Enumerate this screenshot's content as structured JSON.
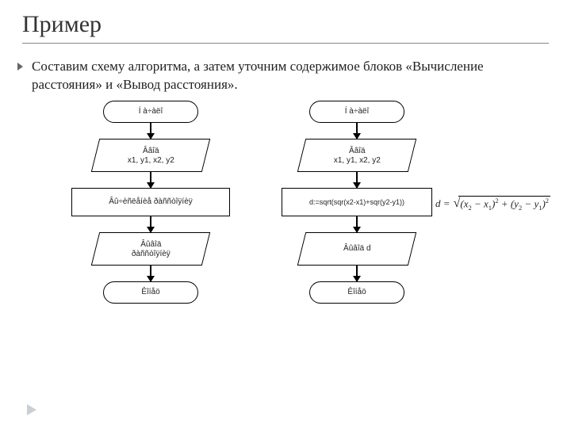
{
  "title": "Пример",
  "paragraph": "Составим схему алгоритма, а затем уточним содержимое блоков «Вычисление расстояния» и «Вывод расстояния».",
  "formula_lhs": "d =",
  "formula_body_html": "(<i>x</i><sub>2</sub> − <i>x</i><sub>1</sub>)<sup>2</sup> + (<i>y</i><sub>2</sub> − <i>y</i><sub>1</sub>)<sup>2</sup>",
  "left": {
    "start": "Í à÷àëî",
    "input": "Ââîä\nx1, y1, x2, y2",
    "process": "Âû÷èñëåíèå ðàññòîÿíèÿ",
    "output": "Âûâîä\nðàññòîÿíèÿ",
    "end": "Êîíåö"
  },
  "right": {
    "start": "Í à÷àëî",
    "input": "Ââîä\nx1, y1, x2, y2",
    "process": "d:=sqrt(sqr(x2-x1)+sqr(y2-y1))",
    "output": "Âûâîä d",
    "end": "Êîíåö"
  },
  "layout": {
    "shape_widths": {
      "terminator": 120,
      "para": 140,
      "process": 200,
      "process_right": 190
    },
    "row_y": {
      "start": 0,
      "a1": 28,
      "input": 48,
      "a2": 90,
      "process": 110,
      "a3": 146,
      "output": 166,
      "a4": 208,
      "end": 228
    },
    "arrow_len": 20,
    "colors": {
      "stroke": "#000000",
      "bg": "#ffffff",
      "rule": "#888888",
      "footer_tri": "#c9cfd6",
      "bullet": "#666666"
    }
  }
}
